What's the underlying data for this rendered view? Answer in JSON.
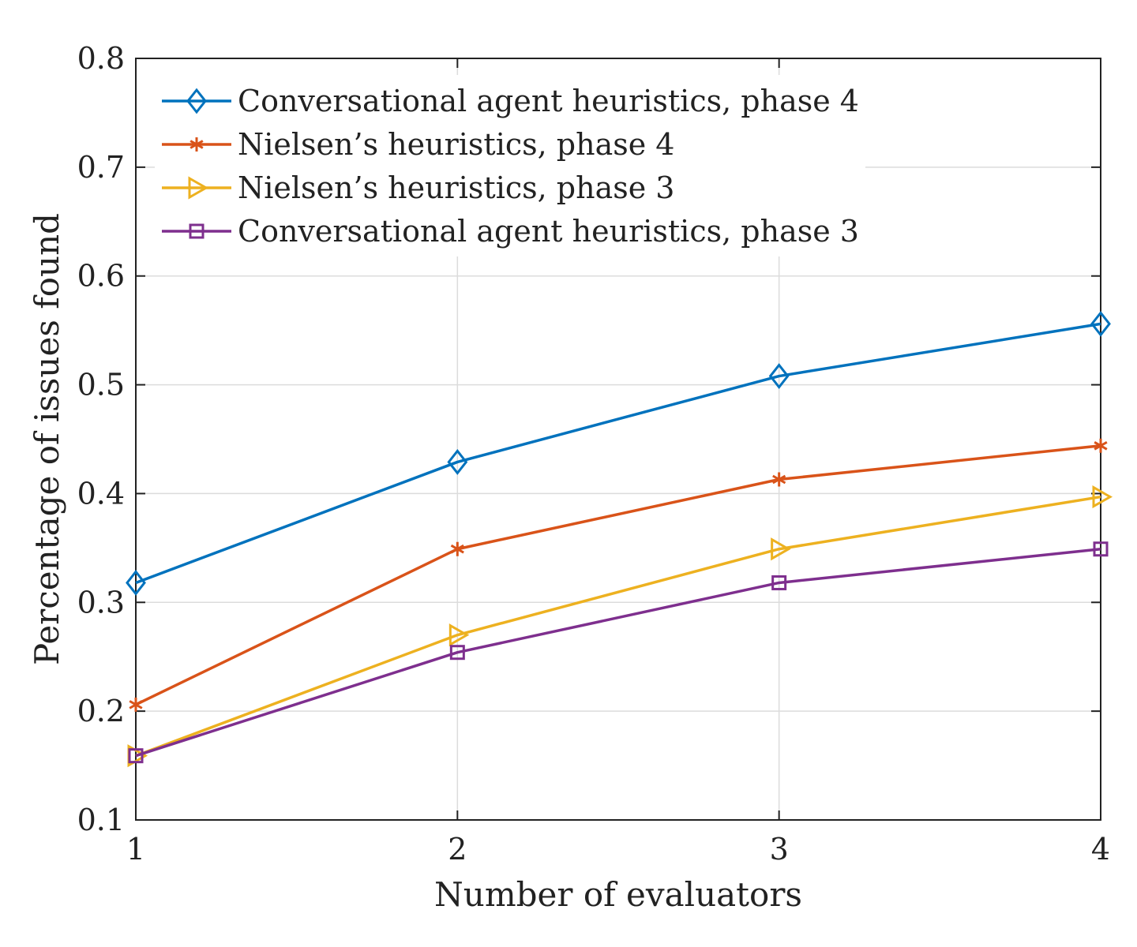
{
  "chart_data": {
    "type": "line",
    "title": "",
    "xlabel": "Number of evaluators",
    "ylabel": "Percentage of issues found",
    "x": [
      1,
      2,
      3,
      4
    ],
    "xlim": [
      1,
      4
    ],
    "ylim": [
      0.1,
      0.8
    ],
    "xticks": [
      "1",
      "2",
      "3",
      "4"
    ],
    "yticks": [
      "0.1",
      "0.2",
      "0.3",
      "0.4",
      "0.5",
      "0.6",
      "0.7",
      "0.8"
    ],
    "grid": true,
    "legend_position": "top-left",
    "series": [
      {
        "name": "Conversational agent heuristics, phase 4",
        "values": [
          0.318,
          0.429,
          0.508,
          0.556
        ],
        "color": "#0072BD",
        "marker": "diamond"
      },
      {
        "name": "Nielsen’s heuristics, phase 4",
        "values": [
          0.206,
          0.349,
          0.413,
          0.444
        ],
        "color": "#D95319",
        "marker": "asterisk"
      },
      {
        "name": "Nielsen’s heuristics, phase 3",
        "values": [
          0.159,
          0.27,
          0.349,
          0.397
        ],
        "color": "#EDB120",
        "marker": "triangle-right"
      },
      {
        "name": "Conversational agent heuristics, phase 3",
        "values": [
          0.159,
          0.254,
          0.318,
          0.349
        ],
        "color": "#7E2F8E",
        "marker": "square"
      }
    ]
  }
}
